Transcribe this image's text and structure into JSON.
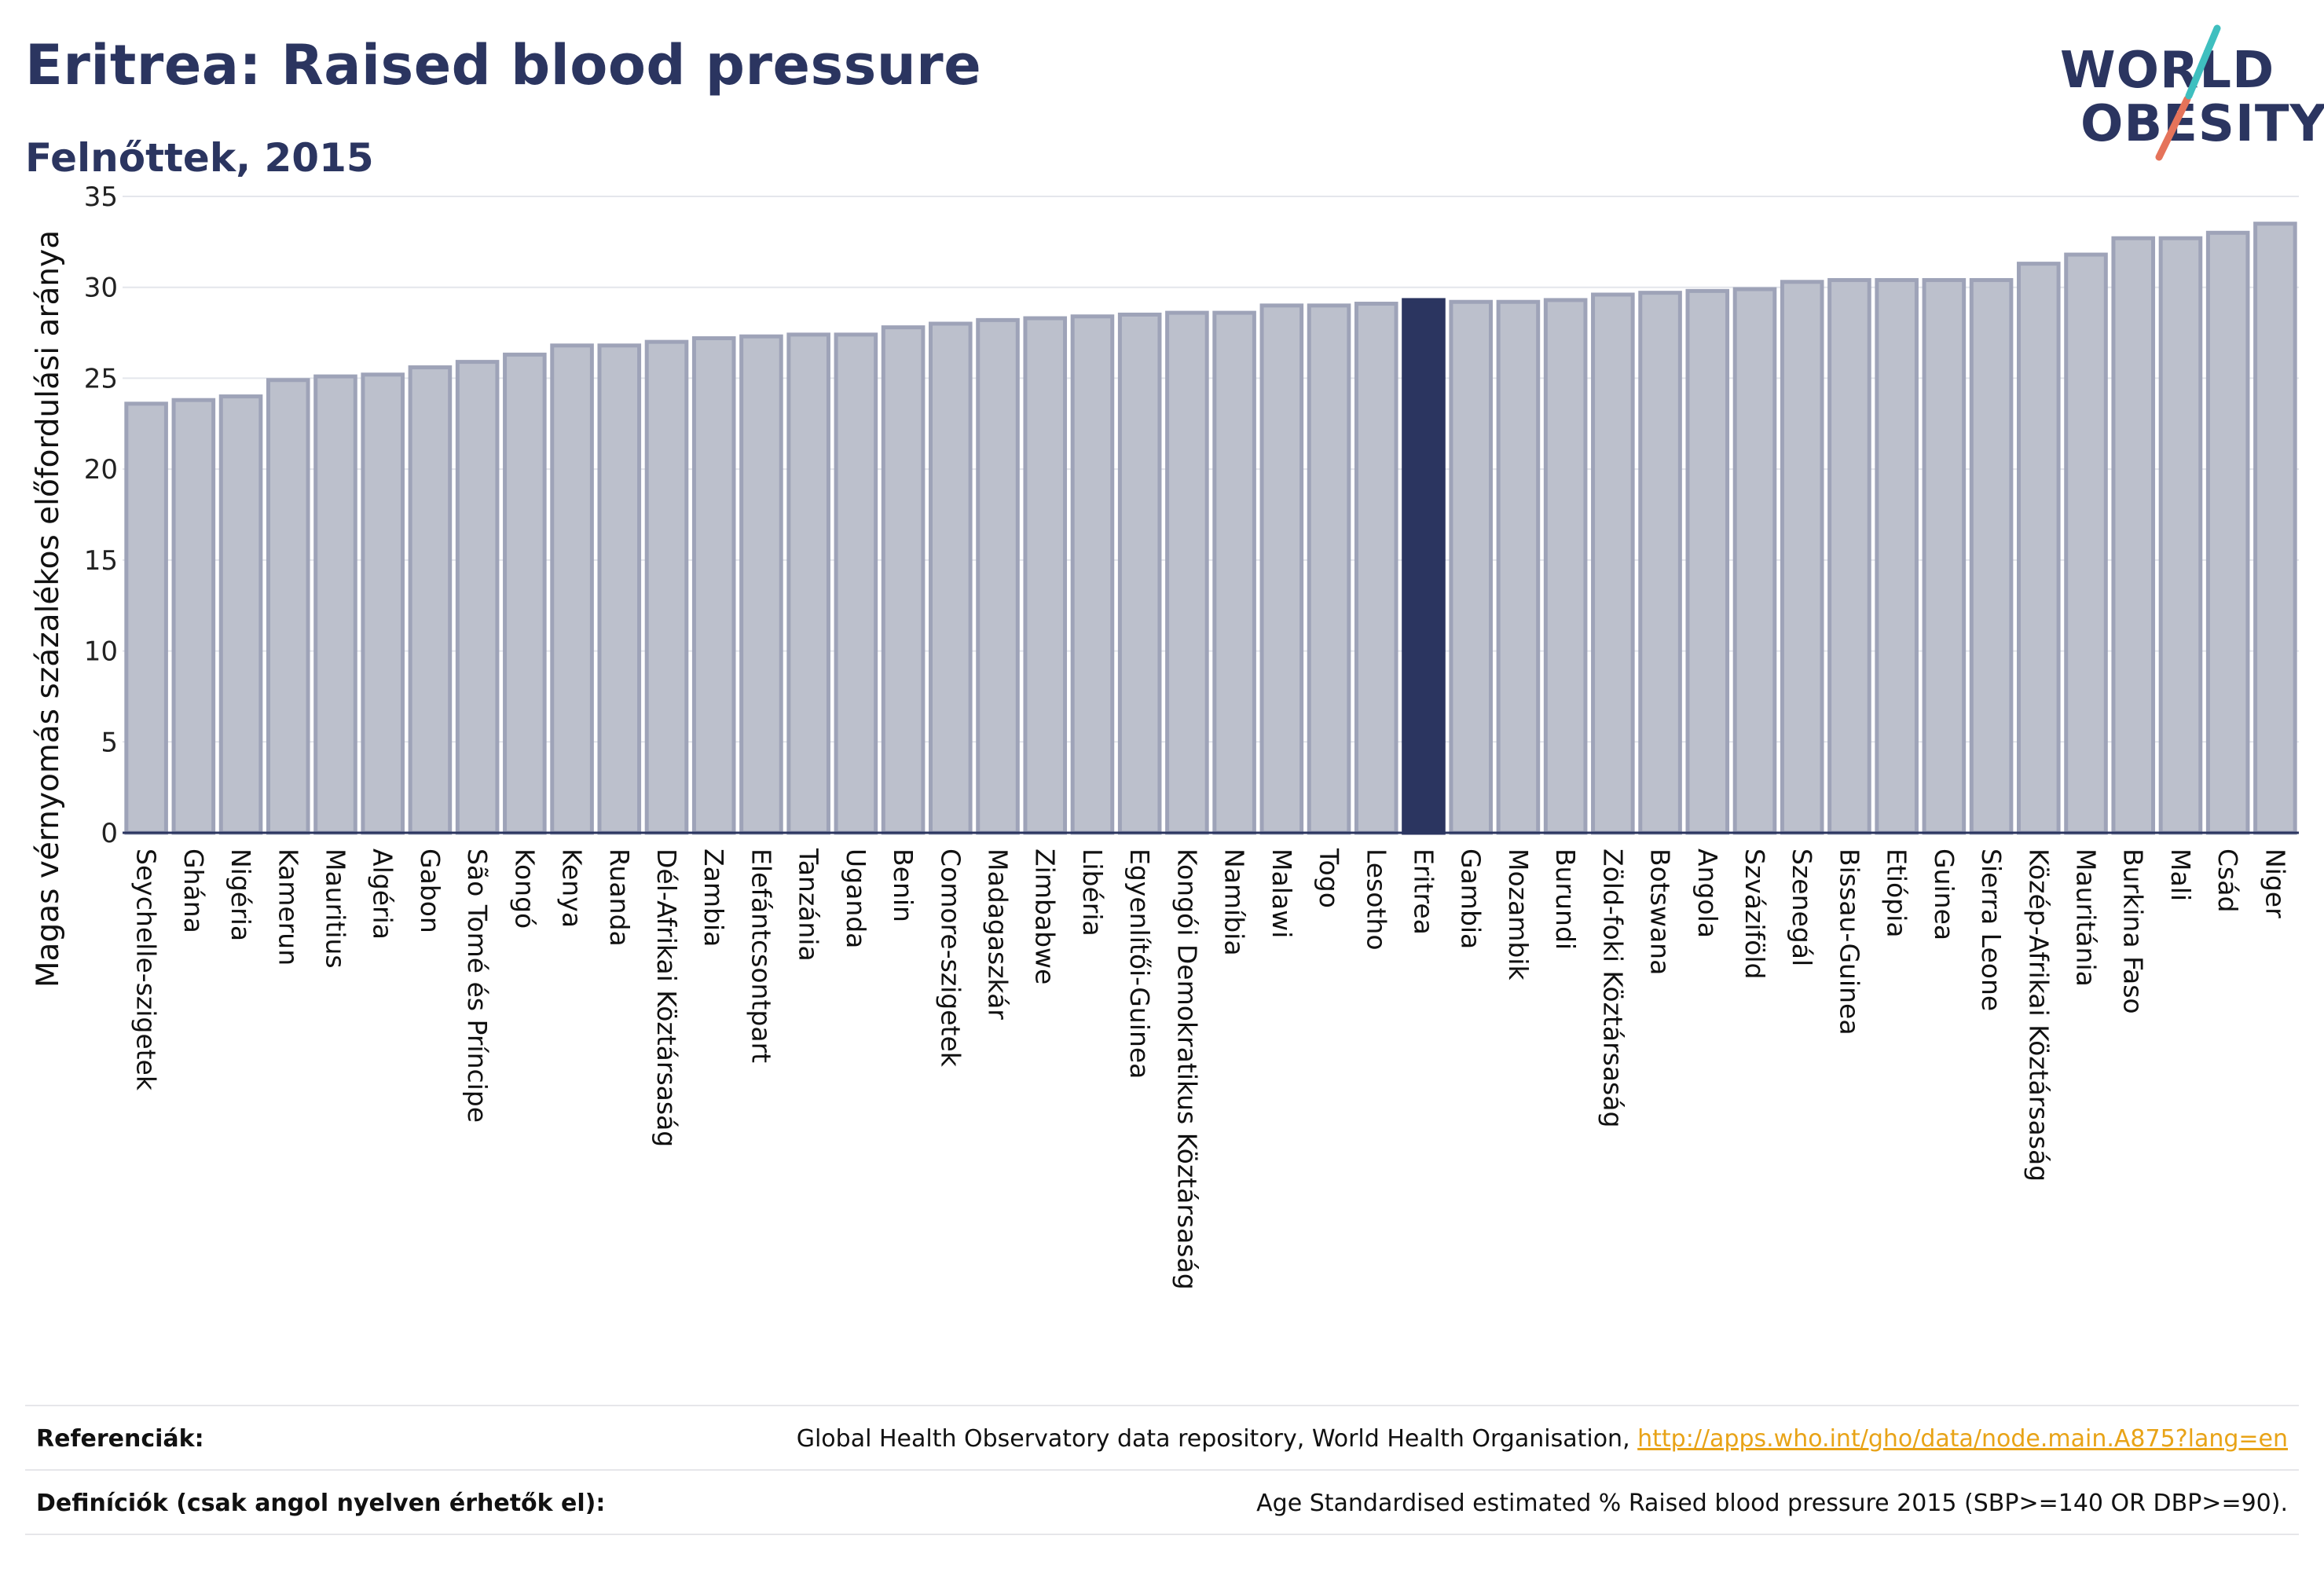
{
  "header": {
    "title": "Eritrea: Raised blood pressure",
    "subtitle": "Felnőttek, 2015"
  },
  "logo": {
    "line1": "WORLD",
    "line2": "OBESITY"
  },
  "colors": {
    "highlight": "#2b3560",
    "bar_fill": "#bcc0cc",
    "bar_stroke": "#9ea3b8",
    "logo_teal": "#3fbfbf",
    "logo_coral": "#e5735a",
    "link": "#e8a317"
  },
  "chart_data": {
    "type": "bar",
    "ylabel": "Magas vérnyomás százalékos előfordulási aránya",
    "xlabel": "",
    "ylim": [
      0,
      35
    ],
    "yticks": [
      0,
      5,
      10,
      15,
      20,
      25,
      30,
      35
    ],
    "grid": true,
    "highlight_category": "Eritrea",
    "categories": [
      "Seychelle-szigetek",
      "Ghána",
      "Nigéria",
      "Kamerun",
      "Mauritius",
      "Algéria",
      "Gabon",
      "São Tomé és Príncipe",
      "Kongó",
      "Kenya",
      "Ruanda",
      "Dél-Afrikai Köztársaság",
      "Zambia",
      "Elefántcsontpart",
      "Tanzánia",
      "Uganda",
      "Benin",
      "Comore-szigetek",
      "Madagaszkár",
      "Zimbabwe",
      "Libéria",
      "Egyenlítői-Guinea",
      "Kongói Demokratikus Köztársaság",
      "Namíbia",
      "Malawi",
      "Togo",
      "Lesotho",
      "Eritrea",
      "Gambia",
      "Mozambik",
      "Burundi",
      "Zöld-foki Köztársaság",
      "Botswana",
      "Angola",
      "Szváziföld",
      "Szenegál",
      "Bissau-Guinea",
      "Etiópia",
      "Guinea",
      "Sierra Leone",
      "Közép-Afrikai Köztársaság",
      "Mauritánia",
      "Burkina Faso",
      "Mali",
      "Csád",
      "Niger"
    ],
    "values": [
      23.6,
      23.8,
      24.0,
      24.9,
      25.1,
      25.2,
      25.6,
      25.9,
      26.3,
      26.8,
      26.8,
      27.0,
      27.2,
      27.3,
      27.4,
      27.4,
      27.8,
      28.0,
      28.2,
      28.3,
      28.4,
      28.5,
      28.6,
      28.6,
      29.0,
      29.0,
      29.1,
      29.3,
      29.2,
      29.2,
      29.3,
      29.6,
      29.7,
      29.8,
      29.9,
      30.3,
      30.4,
      30.4,
      30.4,
      30.4,
      31.3,
      31.8,
      32.7,
      32.7,
      33.0,
      33.5
    ]
  },
  "footer": {
    "references_label": "Referenciák:",
    "references_text": "Global Health Observatory data repository, World Health Organisation, ",
    "references_link": "http://apps.who.int/gho/data/node.main.A875?lang=en",
    "definitions_label": "Definíciók (csak angol nyelven érhetők el):",
    "definitions_text": "Age Standardised estimated % Raised blood pressure 2015 (SBP>=140 OR DBP>=90)."
  }
}
